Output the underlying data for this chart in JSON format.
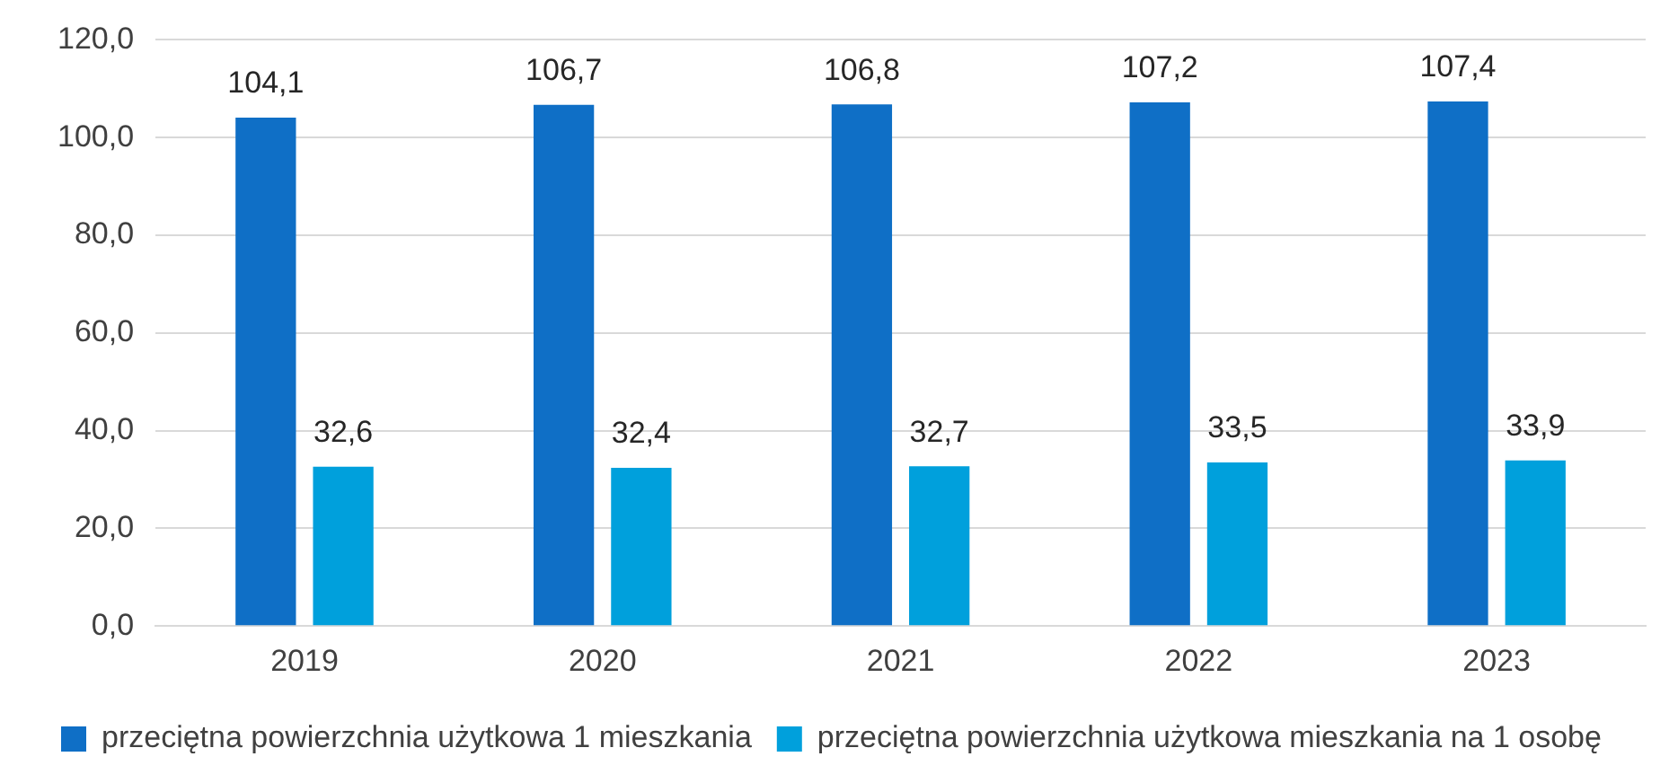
{
  "chart_data": {
    "type": "bar",
    "categories": [
      "2019",
      "2020",
      "2021",
      "2022",
      "2023"
    ],
    "series": [
      {
        "name": "przeciętna powierzchnia użytkowa 1 mieszkania",
        "color": "#0f6fc6",
        "values": [
          104.1,
          106.7,
          106.8,
          107.2,
          107.4
        ],
        "value_labels": [
          "104,1",
          "106,7",
          "106,8",
          "107,2",
          "107,4"
        ]
      },
      {
        "name": "przeciętna powierzchnia użytkowa mieszkania na 1 osobę",
        "color": "#00a0dc",
        "values": [
          32.6,
          32.4,
          32.7,
          33.5,
          33.9
        ],
        "value_labels": [
          "32,6",
          "32,4",
          "32,7",
          "33,5",
          "33,9"
        ]
      }
    ],
    "ylim": [
      0,
      120
    ],
    "yticks": [
      {
        "value": 0,
        "label": "0,0"
      },
      {
        "value": 20,
        "label": "20,0"
      },
      {
        "value": 40,
        "label": "40,0"
      },
      {
        "value": 60,
        "label": "60,0"
      },
      {
        "value": 80,
        "label": "80,0"
      },
      {
        "value": 100,
        "label": "100,0"
      },
      {
        "value": 120,
        "label": "120,0"
      }
    ],
    "grid": "y",
    "legend": "bottom"
  }
}
